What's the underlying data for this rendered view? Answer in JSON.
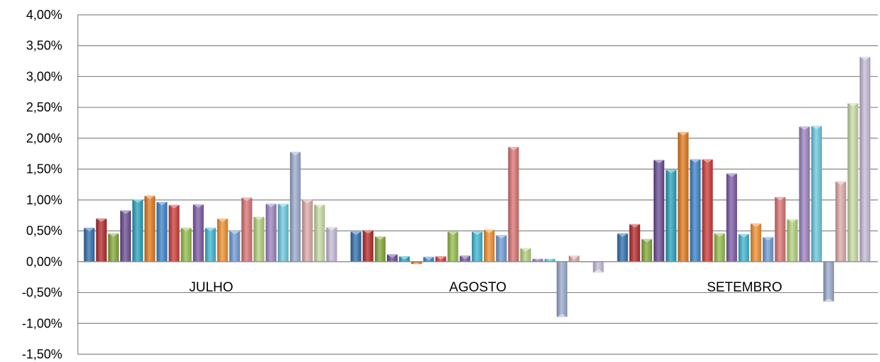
{
  "chart_data": {
    "type": "bar",
    "categories": [
      "JULHO",
      "AGOSTO",
      "SETEMBRO"
    ],
    "ylim": [
      -0.015,
      0.04
    ],
    "yticks": [
      -0.015,
      -0.01,
      -0.005,
      0,
      0.005,
      0.01,
      0.015,
      0.02,
      0.025,
      0.03,
      0.035,
      0.04
    ],
    "ytick_labels": [
      "-1,50%",
      "-1,00%",
      "-0,50%",
      "0,00%",
      "0,50%",
      "1,00%",
      "1,50%",
      "2,00%",
      "2,50%",
      "3,00%",
      "3,50%",
      "4,00%"
    ],
    "grid": true,
    "legend": "none",
    "series": [
      {
        "color": "#2f6fad",
        "values": [
          0.0055,
          0.0049,
          0.0046
        ]
      },
      {
        "color": "#b4282a",
        "values": [
          0.007,
          0.0051,
          0.0061
        ]
      },
      {
        "color": "#84a83a",
        "values": [
          0.0046,
          0.0041,
          0.0037
        ]
      },
      {
        "color": "#6b4b93",
        "values": [
          0.0083,
          0.0012,
          0.0165
        ]
      },
      {
        "color": "#2aa1bd",
        "values": [
          0.0101,
          0.0009,
          0.0149
        ]
      },
      {
        "color": "#e27a1e",
        "values": [
          0.0107,
          -0.0004,
          0.021
        ]
      },
      {
        "color": "#3a83c9",
        "values": [
          0.0097,
          0.0008,
          0.0166
        ]
      },
      {
        "color": "#cc3b38",
        "values": [
          0.0092,
          0.0009,
          0.0166
        ]
      },
      {
        "color": "#93bd49",
        "values": [
          0.0055,
          0.0049,
          0.0046
        ]
      },
      {
        "color": "#7c59a6",
        "values": [
          0.0093,
          0.001,
          0.0143
        ]
      },
      {
        "color": "#3db6d2",
        "values": [
          0.0055,
          0.0049,
          0.0045
        ]
      },
      {
        "color": "#f0902f",
        "values": [
          0.007,
          0.0052,
          0.0062
        ]
      },
      {
        "color": "#6f9ad6",
        "values": [
          0.005,
          0.0043,
          0.004
        ]
      },
      {
        "color": "#d97372",
        "values": [
          0.0104,
          0.0186,
          0.0105
        ]
      },
      {
        "color": "#b3d07c",
        "values": [
          0.0073,
          0.0022,
          0.0069
        ]
      },
      {
        "color": "#9c82c0",
        "values": [
          0.0094,
          0.0005,
          0.0219
        ]
      },
      {
        "color": "#68c9df",
        "values": [
          0.0094,
          0.0005,
          0.022
        ]
      },
      {
        "color": "#9aabcf",
        "values": [
          0.0178,
          -0.009,
          -0.0065
        ]
      },
      {
        "color": "#ddaaa8",
        "values": [
          0.01,
          0.001,
          0.013
        ]
      },
      {
        "color": "#c8dca6",
        "values": [
          0.0093,
          0.0,
          0.0257
        ]
      },
      {
        "color": "#c6bcd8",
        "values": [
          0.0056,
          -0.0018,
          0.0332
        ]
      }
    ]
  }
}
